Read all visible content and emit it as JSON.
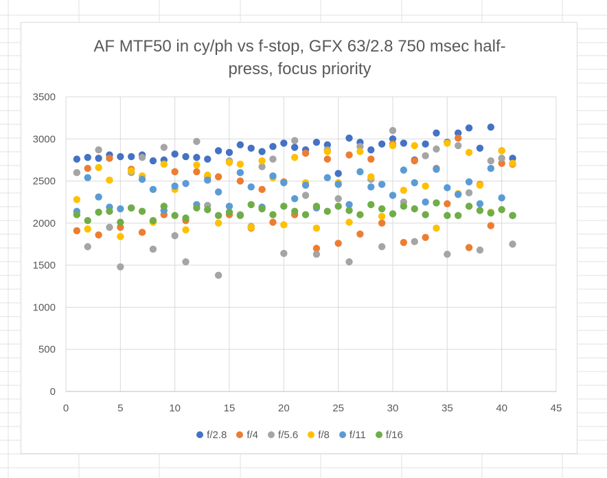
{
  "chart_data": {
    "type": "scatter",
    "title": "AF MTF50 in cy/ph vs f-stop, GFX 63/2.8 750 msec half-\npress, focus priority",
    "xlabel": "",
    "ylabel": "",
    "xlim": [
      0,
      45
    ],
    "ylim": [
      0,
      3500
    ],
    "xticks": [
      0,
      5,
      10,
      15,
      20,
      25,
      30,
      35,
      40,
      45
    ],
    "yticks": [
      0,
      500,
      1000,
      1500,
      2000,
      2500,
      3000,
      3500
    ],
    "grid": true,
    "legend_position": "bottom",
    "x": [
      1,
      2,
      3,
      4,
      5,
      6,
      7,
      8,
      9,
      10,
      11,
      12,
      13,
      14,
      15,
      16,
      17,
      18,
      19,
      20,
      21,
      22,
      23,
      24,
      25,
      26,
      27,
      28,
      29,
      30,
      31,
      32,
      33,
      34,
      35,
      36,
      37,
      38,
      39,
      40,
      41
    ],
    "series": [
      {
        "name": "f/2.8",
        "color": "#4472c4",
        "values": [
          2760,
          2780,
          2770,
          2810,
          2790,
          2790,
          2810,
          2740,
          2750,
          2820,
          2790,
          2780,
          2760,
          2860,
          2840,
          2930,
          2890,
          2850,
          2910,
          2950,
          2900,
          2870,
          2960,
          2930,
          2590,
          3010,
          2960,
          2870,
          2940,
          3000,
          2950,
          2750,
          2940,
          3070,
          2960,
          3070,
          3130,
          2890,
          3140,
          2860,
          2770
        ]
      },
      {
        "name": "f/4",
        "color": "#ed7d31",
        "values": [
          1910,
          2650,
          1860,
          2770,
          1950,
          2640,
          1890,
          2020,
          2100,
          2610,
          2030,
          2610,
          2550,
          2550,
          2100,
          2500,
          1940,
          2400,
          2010,
          2490,
          2100,
          2830,
          1700,
          2760,
          1760,
          2810,
          1870,
          2760,
          2000,
          2940,
          1770,
          2740,
          1830,
          2650,
          2230,
          3010,
          1710,
          2460,
          1970,
          2710,
          2700
        ]
      },
      {
        "name": "f/5.6",
        "color": "#a5a5a5",
        "values": [
          2600,
          1720,
          2870,
          1950,
          1480,
          2600,
          2780,
          1690,
          2900,
          1850,
          1540,
          2970,
          2210,
          1380,
          2740,
          2100,
          1960,
          2670,
          2760,
          1640,
          2980,
          2330,
          1630,
          2870,
          2290,
          1540,
          2910,
          2520,
          1720,
          3100,
          2250,
          1780,
          2800,
          2880,
          1630,
          2920,
          2360,
          1680,
          2740,
          2770,
          1750
        ]
      },
      {
        "name": "f/8",
        "color": "#ffc000",
        "values": [
          2280,
          1930,
          2660,
          2510,
          1840,
          2620,
          2560,
          2010,
          2700,
          2400,
          1920,
          2690,
          2570,
          2000,
          2720,
          2700,
          1950,
          2740,
          2540,
          1980,
          2780,
          2480,
          1940,
          2850,
          2480,
          2010,
          2850,
          2550,
          2080,
          2920,
          2390,
          2920,
          2440,
          1940,
          2950,
          2350,
          2840,
          2450,
          2130,
          2860,
          2710
        ]
      },
      {
        "name": "f/11",
        "color": "#5b9bd5",
        "values": [
          2140,
          2540,
          2310,
          2190,
          2170,
          2180,
          2520,
          2400,
          2150,
          2440,
          2470,
          2220,
          2510,
          2370,
          2200,
          2600,
          2430,
          2190,
          2560,
          2480,
          2290,
          2450,
          2180,
          2540,
          2460,
          2220,
          2610,
          2430,
          2460,
          2330,
          2630,
          2480,
          2250,
          2640,
          2420,
          2340,
          2490,
          2230,
          2650,
          2300,
          2090
        ]
      },
      {
        "name": "f/16",
        "color": "#70ad47",
        "values": [
          2100,
          2030,
          2130,
          2140,
          2010,
          2180,
          2140,
          2030,
          2200,
          2090,
          2060,
          2180,
          2160,
          2090,
          2130,
          2090,
          2220,
          2170,
          2100,
          2200,
          2140,
          2100,
          2200,
          2140,
          2200,
          2150,
          2100,
          2220,
          2170,
          2110,
          2200,
          2170,
          2100,
          2240,
          2090,
          2090,
          2200,
          2150,
          2120,
          2160,
          2090
        ]
      }
    ]
  }
}
